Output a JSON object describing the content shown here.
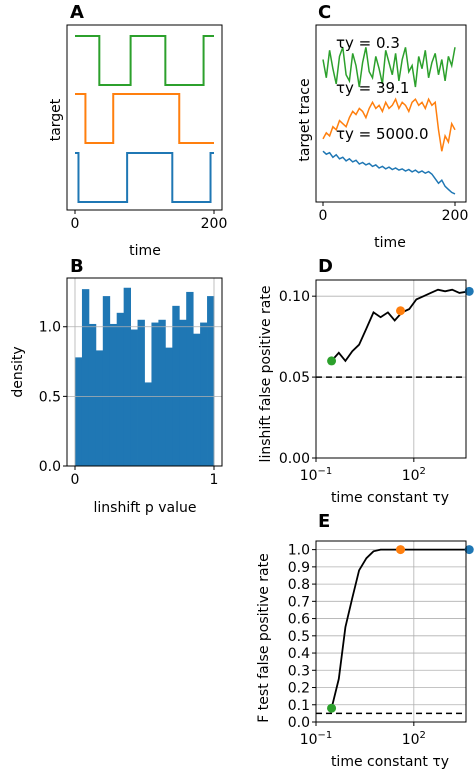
{
  "colors": {
    "green": "#2ca02c",
    "orange": "#ff7f0e",
    "blue": "#1f77b4",
    "black": "#000000",
    "grid": "#b0b0b0"
  },
  "chart_data": [
    {
      "panel": "A",
      "type": "line",
      "ylabel": "target",
      "xlabel": "time",
      "xlim": [
        0,
        200
      ],
      "xticks": [
        "0",
        "200"
      ],
      "grid": false,
      "series": [
        {
          "color": "#2ca02c",
          "points": [
            [
              0,
              1
            ],
            [
              35,
              1
            ],
            [
              35,
              0
            ],
            [
              80,
              0
            ],
            [
              80,
              1
            ],
            [
              130,
              1
            ],
            [
              130,
              0
            ],
            [
              185,
              0
            ],
            [
              185,
              1
            ],
            [
              200,
              1
            ]
          ]
        },
        {
          "color": "#ff7f0e",
          "points": [
            [
              0,
              1
            ],
            [
              15,
              1
            ],
            [
              15,
              0
            ],
            [
              55,
              0
            ],
            [
              55,
              1
            ],
            [
              150,
              1
            ],
            [
              150,
              0
            ],
            [
              200,
              0
            ]
          ]
        },
        {
          "color": "#1f77b4",
          "points": [
            [
              0,
              1
            ],
            [
              5,
              1
            ],
            [
              5,
              0
            ],
            [
              75,
              0
            ],
            [
              75,
              1
            ],
            [
              140,
              1
            ],
            [
              140,
              0
            ],
            [
              195,
              0
            ],
            [
              195,
              1
            ],
            [
              200,
              1
            ]
          ]
        }
      ]
    },
    {
      "panel": "B",
      "type": "bar",
      "xlabel": "linshift p value",
      "ylabel": "density",
      "xlim": [
        0,
        1
      ],
      "ylim": [
        0,
        1.35
      ],
      "xticks": [
        "0",
        "1"
      ],
      "yticks": [
        "0.0",
        "0.5",
        "1.0"
      ],
      "grid": true,
      "color": "#1f77b4",
      "bin_edges": [
        0,
        0.05,
        0.1,
        0.15,
        0.2,
        0.25,
        0.3,
        0.35,
        0.4,
        0.45,
        0.5,
        0.55,
        0.6,
        0.65,
        0.7,
        0.75,
        0.8,
        0.85,
        0.9,
        0.95,
        1.0
      ],
      "values": [
        0.78,
        1.27,
        1.02,
        0.83,
        1.22,
        1.02,
        1.1,
        1.28,
        0.98,
        1.05,
        0.6,
        1.03,
        1.05,
        0.85,
        1.15,
        1.05,
        1.25,
        0.95,
        1.03,
        1.22
      ]
    },
    {
      "panel": "C",
      "type": "line",
      "ylabel": "target trace",
      "xlabel": "time",
      "xlim": [
        0,
        200
      ],
      "xticks": [
        "0",
        "200"
      ],
      "grid": false,
      "series": [
        {
          "name": "τy = 0.3",
          "color": "#2ca02c",
          "values": [
            4.5,
            3.9,
            4.8,
            4.2,
            3.7,
            4.6,
            4.9,
            4.0,
            3.8,
            4.7,
            4.3,
            3.6,
            4.4,
            4.9,
            4.1,
            3.9,
            4.6,
            4.2,
            3.7,
            4.8,
            4.4,
            4.0,
            4.7,
            3.8,
            4.5,
            4.9,
            4.1,
            4.3,
            3.6,
            4.6,
            4.2,
            4.8,
            3.9,
            4.4,
            4.7,
            4.0,
            4.5,
            3.8,
            4.6,
            4.3,
            4.9
          ]
        },
        {
          "name": "τy = 39.1",
          "color": "#ff7f0e",
          "values": [
            1.9,
            2.1,
            2.0,
            2.3,
            2.2,
            2.5,
            2.4,
            2.3,
            2.6,
            2.8,
            2.7,
            2.9,
            2.8,
            2.6,
            2.9,
            3.1,
            2.9,
            3.0,
            2.8,
            3.1,
            2.9,
            3.0,
            3.2,
            2.9,
            3.1,
            3.0,
            2.8,
            3.1,
            3.2,
            3.0,
            3.1,
            2.9,
            3.2,
            3.0,
            3.1,
            2.2,
            1.5,
            2.0,
            1.8,
            2.4,
            2.2
          ]
        },
        {
          "name": "τy = 5000.0",
          "color": "#1f77b4",
          "values": [
            1.5,
            1.4,
            1.45,
            1.3,
            1.38,
            1.25,
            1.3,
            1.18,
            1.25,
            1.15,
            1.2,
            1.08,
            1.13,
            1.05,
            1.1,
            1.0,
            1.05,
            0.95,
            1.0,
            0.92,
            0.98,
            0.9,
            0.95,
            0.88,
            0.92,
            0.85,
            0.9,
            0.82,
            0.88,
            0.8,
            0.85,
            0.78,
            0.83,
            0.75,
            0.6,
            0.45,
            0.55,
            0.35,
            0.25,
            0.15,
            0.1
          ]
        }
      ]
    },
    {
      "panel": "D",
      "type": "line",
      "xlabel": "time constant τy",
      "ylabel": "linshift false positive rate",
      "xscale": "log",
      "xlim_log10": [
        -1,
        3.6
      ],
      "xticks": [
        {
          "log10": -1,
          "label": "10−1"
        },
        {
          "log10": 2,
          "label": "102"
        }
      ],
      "ylim": [
        0,
        0.11
      ],
      "yticks": [
        "0.00",
        "0.05",
        "0.10"
      ],
      "grid": true,
      "reference_line": {
        "y": 0.05,
        "style": "dashed"
      },
      "series": [
        {
          "color": "#000000",
          "x": [
            0.3,
            0.5,
            0.8,
            1.3,
            2.1,
            3.5,
            5.8,
            9.6,
            16,
            26,
            43,
            72,
            120,
            200,
            330,
            550,
            910,
            1500,
            2500,
            5000
          ],
          "y": [
            0.06,
            0.065,
            0.06,
            0.066,
            0.07,
            0.08,
            0.09,
            0.087,
            0.09,
            0.085,
            0.09,
            0.092,
            0.098,
            0.1,
            0.102,
            0.104,
            0.103,
            0.104,
            0.102,
            0.103
          ]
        }
      ],
      "markers": [
        {
          "x": 0.3,
          "y": 0.06,
          "color": "#2ca02c"
        },
        {
          "x": 39.1,
          "y": 0.091,
          "color": "#ff7f0e"
        },
        {
          "x": 5000.0,
          "y": 0.103,
          "color": "#1f77b4"
        }
      ]
    },
    {
      "panel": "E",
      "type": "line",
      "xlabel": "time constant τy",
      "ylabel": "F test false positive rate",
      "xscale": "log",
      "xlim_log10": [
        -1,
        3.6
      ],
      "xticks": [
        {
          "log10": -1,
          "label": "10−1"
        },
        {
          "log10": 2,
          "label": "102"
        }
      ],
      "ylim": [
        0,
        1.05
      ],
      "yticks": [
        "0.0",
        "0.1",
        "0.2",
        "0.3",
        "0.4",
        "0.5",
        "0.6",
        "0.7",
        "0.8",
        "0.9",
        "1.0"
      ],
      "grid": true,
      "reference_line": {
        "y": 0.05,
        "style": "dashed"
      },
      "series": [
        {
          "color": "#000000",
          "x": [
            0.3,
            0.5,
            0.8,
            1.3,
            2.1,
            3.5,
            5.8,
            9.6,
            16,
            26,
            43,
            72,
            120,
            200,
            330,
            550,
            910,
            1500,
            2500,
            5000
          ],
          "y": [
            0.08,
            0.25,
            0.55,
            0.72,
            0.88,
            0.95,
            0.99,
            1.0,
            1.0,
            1.0,
            1.0,
            1.0,
            1.0,
            1.0,
            1.0,
            1.0,
            1.0,
            1.0,
            1.0,
            1.0
          ]
        }
      ],
      "markers": [
        {
          "x": 0.3,
          "y": 0.08,
          "color": "#2ca02c"
        },
        {
          "x": 39.1,
          "y": 1.0,
          "color": "#ff7f0e"
        },
        {
          "x": 5000.0,
          "y": 1.0,
          "color": "#1f77b4"
        }
      ]
    }
  ]
}
